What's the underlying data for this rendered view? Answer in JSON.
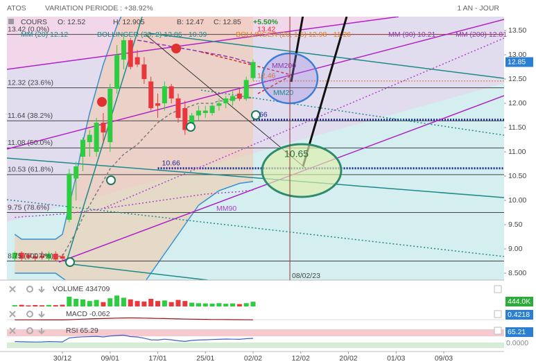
{
  "header": {
    "symbol": "ATOS",
    "variation": "VARIATION PERIODE : +38.92%",
    "period": "1 AN - JOUR"
  },
  "legend": {
    "name": "COURS",
    "open": "O: 12.52",
    "high": "H: 12.905",
    "low": "B: 12.47",
    "close": "C: 12.85",
    "change": "+5.50%"
  },
  "indicators": [
    "MM (20) 12.12",
    "BOLLINGER (20, 2) 13.86 - 10.39",
    "BOLLINGER (20, 1.5) 12.98 - 11.26",
    "MM (90) 10.21",
    "MM (200) 12.81"
  ],
  "annotations": [
    "MM200",
    "MM20",
    "MM90",
    "10.65"
  ],
  "chart_data": [
    {
      "type": "candlestick",
      "x": [
        1,
        2,
        3,
        4,
        5,
        6,
        7,
        8,
        9,
        10,
        11,
        12,
        13,
        14,
        15,
        16,
        17,
        18,
        19,
        20,
        21,
        22,
        23,
        24,
        25,
        26,
        27,
        28,
        29,
        30,
        31,
        32,
        33,
        34,
        35,
        36
      ],
      "open": [
        8.8,
        8.92,
        8.88,
        8.85,
        8.86,
        8.8,
        8.9,
        8.85,
        9.6,
        10.45,
        10.9,
        11.2,
        11.0,
        11.6,
        11.2,
        12.3,
        12.9,
        13.3,
        12.95,
        12.8,
        12.45,
        12.0,
        12.0,
        12.35,
        12.1,
        11.9,
        11.55,
        11.75,
        11.8,
        11.8,
        11.95,
        12.0,
        12.05,
        12.2,
        12.1,
        12.52
      ],
      "high": [
        8.95,
        8.95,
        8.92,
        8.9,
        8.95,
        8.95,
        8.95,
        8.9,
        10.65,
        10.8,
        11.3,
        11.45,
        11.7,
        11.8,
        12.4,
        13.2,
        13.4,
        13.35,
        13.1,
        12.95,
        12.55,
        12.2,
        12.45,
        12.4,
        12.2,
        12.05,
        11.8,
        11.95,
        11.95,
        12.0,
        12.1,
        12.15,
        12.25,
        12.3,
        12.55,
        12.905
      ],
      "low": [
        8.75,
        8.75,
        8.78,
        8.75,
        8.78,
        8.75,
        8.75,
        8.75,
        9.55,
        10.0,
        10.6,
        10.9,
        10.9,
        11.2,
        11.0,
        12.2,
        12.7,
        12.7,
        12.75,
        12.4,
        11.85,
        11.7,
        11.85,
        12.0,
        11.6,
        11.35,
        11.5,
        11.65,
        11.7,
        11.75,
        11.85,
        11.9,
        11.95,
        12.05,
        12.05,
        12.47
      ],
      "close": [
        8.92,
        8.8,
        8.82,
        8.8,
        8.82,
        8.9,
        8.78,
        8.8,
        10.55,
        10.7,
        11.25,
        11.35,
        11.6,
        11.4,
        12.3,
        13.0,
        13.3,
        12.75,
        12.8,
        12.5,
        11.9,
        11.95,
        12.35,
        12.1,
        11.7,
        11.45,
        11.75,
        11.85,
        11.85,
        11.95,
        12.0,
        12.1,
        12.15,
        12.1,
        12.48,
        12.85
      ],
      "up_color": "#2ecc40",
      "down_color": "#e8383d",
      "bollinger": {
        "color": "#3a8fd0",
        "fill": "#f2c9a8",
        "upper": [
          9.3,
          9.2,
          9.2,
          9.2,
          9.2,
          9.2,
          9.2,
          9.3,
          9.9,
          10.5,
          11.2,
          11.8,
          12.3,
          12.8,
          13.2,
          13.6,
          13.9,
          14.0,
          14.0,
          14.0,
          14.0,
          14.0,
          14.0,
          13.95,
          13.95,
          13.9,
          13.9,
          13.9,
          13.9,
          13.88,
          13.88,
          13.87,
          13.87,
          13.86,
          13.86,
          13.86
        ],
        "lower": [
          8.5,
          8.5,
          8.5,
          8.5,
          8.5,
          8.5,
          8.5,
          8.4,
          8.3,
          8.2,
          8.1,
          8.0,
          8.0,
          8.0,
          8.0,
          8.0,
          8.0,
          8.1,
          8.2,
          8.3,
          8.5,
          8.7,
          8.9,
          9.1,
          9.3,
          9.5,
          9.7,
          9.9,
          10.0,
          10.1,
          10.2,
          10.25,
          10.3,
          10.35,
          10.37,
          10.39
        ]
      },
      "overlays": [
        {
          "color": "#7d7d7d",
          "dash": "4 3",
          "values": [
            8.9,
            8.9,
            8.9,
            8.9,
            8.9,
            8.85,
            8.85,
            8.85,
            9.1,
            9.35,
            9.65,
            9.9,
            10.15,
            10.4,
            10.65,
            10.8,
            10.95,
            11.05,
            11.15,
            11.3,
            11.45,
            11.6,
            11.7,
            11.8,
            11.85,
            11.9,
            11.95,
            12.0,
            12.0,
            12.0,
            12.05,
            12.05,
            12.1,
            12.1,
            12.1,
            12.12
          ]
        },
        {
          "color": "#b040d0",
          "dash": "2 3",
          "values": [
            9.65,
            9.66,
            9.67,
            9.68,
            9.69,
            9.7,
            9.71,
            9.72,
            9.73,
            9.75,
            9.77,
            9.79,
            9.81,
            9.83,
            9.85,
            9.87,
            9.89,
            9.91,
            9.93,
            9.95,
            9.97,
            9.99,
            10.01,
            10.03,
            10.05,
            10.07,
            10.09,
            10.11,
            10.13,
            10.14,
            10.15,
            10.16,
            10.17,
            10.18,
            10.2,
            10.21
          ]
        },
        {
          "color": "#8a3ab0",
          "dash": "6 3",
          "values": [
            null,
            null,
            null,
            null,
            null,
            null,
            null,
            null,
            null,
            null,
            null,
            null,
            null,
            null,
            null,
            null,
            null,
            null,
            13.3,
            13.28,
            13.25,
            13.22,
            13.2,
            13.17,
            13.15,
            13.12,
            13.1,
            13.07,
            13.05,
            13.02,
            13.0,
            12.97,
            12.94,
            12.9,
            12.86,
            12.81
          ]
        }
      ],
      "ylim": [
        8.357,
        13.786
      ],
      "yticks": [
        {
          "value": 13.5,
          "label": "13.50"
        },
        {
          "value": 13,
          "label": "13.00"
        },
        {
          "value": 12.5,
          "label": "12.50"
        },
        {
          "value": 12,
          "label": "12.00"
        },
        {
          "value": 11.5,
          "label": "11.50"
        },
        {
          "value": 11,
          "label": "11.00"
        },
        {
          "value": 10.5,
          "label": "10.50"
        },
        {
          "value": 10,
          "label": "10.00"
        },
        {
          "value": 9.5,
          "label": "9.50"
        },
        {
          "value": 9,
          "label": "9.00"
        },
        {
          "value": 8.5,
          "label": "8.500"
        }
      ],
      "xlim": [
        -0.15,
        72.86
      ],
      "xticks": [
        {
          "value": 8,
          "label": "30/12"
        },
        {
          "value": 15,
          "label": "09/01"
        },
        {
          "value": 22,
          "label": "17/01"
        },
        {
          "value": 29,
          "label": "25/01"
        },
        {
          "value": 36,
          "label": "02/02"
        },
        {
          "value": 43,
          "label": "12/02"
        },
        {
          "value": 50,
          "label": "20/02"
        },
        {
          "value": 57,
          "label": "01/03"
        },
        {
          "value": 64,
          "label": "09/03"
        }
      ],
      "fibonacci": [
        {
          "value": 13.42,
          "label": "13.42 (0.0%)"
        },
        {
          "value": 12.32,
          "label": "12.32 (23.6%)"
        },
        {
          "value": 11.64,
          "label": "11.64 (38.2%)"
        },
        {
          "value": 11.08,
          "label": "11.08 (50.0%)"
        },
        {
          "value": 10.53,
          "label": "10.53 (61.8%)"
        },
        {
          "value": 9.75,
          "label": "9.75 (78.6%)"
        },
        {
          "value": 8.75,
          "label": "8.75 (100.0%)"
        }
      ],
      "levels": [
        {
          "value": 11.66,
          "label": ".66",
          "color": "#1a2a9a",
          "from": 36
        },
        {
          "value": 10.66,
          "label": "10.66",
          "color": "#1a2a9a",
          "from": 22
        },
        {
          "value": 12.46,
          "label": "12.46",
          "color": "#e07030",
          "from": 36
        },
        {
          "value": 13.42,
          "label": "13.42",
          "color": "#e03030",
          "from": 36
        }
      ],
      "marker": {
        "value": 41.4,
        "label": "08/02/23",
        "color": "#a03030"
      },
      "price_color": "#2a7fd4"
    },
    {
      "type": "bar",
      "title": "VOLUME 434709",
      "badge": "444.0K",
      "badge_color": "#2eaa3a",
      "x": [
        1,
        2,
        3,
        4,
        5,
        6,
        7,
        8,
        9,
        10,
        11,
        12,
        13,
        14,
        15,
        16,
        17,
        18,
        19,
        20,
        21,
        22,
        23,
        24,
        25,
        26,
        27,
        28,
        29,
        30,
        31,
        32,
        33,
        34,
        35,
        36
      ],
      "values": [
        120000,
        150000,
        100000,
        130000,
        110000,
        140000,
        120000,
        160000,
        900000,
        700000,
        650000,
        500000,
        600000,
        400000,
        750000,
        1000000,
        800000,
        650000,
        500000,
        450000,
        700000,
        500000,
        550000,
        400000,
        600000,
        500000,
        350000,
        300000,
        280000,
        260000,
        300000,
        250000,
        280000,
        220000,
        300000,
        434709
      ],
      "ylim": [
        0,
        1400000
      ]
    },
    {
      "type": "line",
      "title": "MACD -0.062",
      "badge": "0.4218",
      "badge_color": "#2a7fd4",
      "color": "#8b1a1a",
      "x": [
        1,
        2,
        3,
        4,
        5,
        6,
        7,
        8,
        9,
        10,
        11,
        12,
        13,
        14,
        15,
        16,
        17,
        18,
        19,
        20,
        21,
        22,
        23,
        24,
        25,
        26,
        27,
        28,
        29,
        30,
        31,
        32,
        33,
        34,
        35,
        36
      ],
      "values": [
        -0.06,
        -0.07,
        -0.08,
        -0.08,
        -0.09,
        -0.09,
        -0.1,
        -0.1,
        -0.02,
        0.08,
        0.18,
        0.26,
        0.33,
        0.38,
        0.45,
        0.52,
        0.58,
        0.6,
        0.58,
        0.54,
        0.48,
        0.42,
        0.38,
        0.32,
        0.26,
        0.2,
        0.16,
        0.12,
        0.09,
        0.06,
        0.04,
        0.02,
        0.0,
        -0.02,
        -0.04,
        -0.062
      ],
      "ylim": [
        -1.2,
        1.2
      ]
    },
    {
      "type": "line",
      "title": "RSI 65.29",
      "badge": "65.21",
      "badge_color": "#2a7fd4",
      "extra": "0.0000",
      "color": "#3a5fcd",
      "x": [
        1,
        2,
        3,
        4,
        5,
        6,
        7,
        8,
        9,
        10,
        11,
        12,
        13,
        14,
        15,
        16,
        17,
        18,
        19,
        20,
        21,
        22,
        23,
        24,
        25,
        26,
        27,
        28,
        29,
        30,
        31,
        32,
        33,
        34,
        35,
        36
      ],
      "values": [
        45,
        44,
        43,
        42,
        43,
        45,
        44,
        43,
        68,
        72,
        75,
        76,
        78,
        74,
        80,
        83,
        85,
        76,
        74,
        66,
        56,
        55,
        60,
        56,
        50,
        46,
        52,
        55,
        56,
        58,
        59,
        61,
        60,
        59,
        63,
        65.29
      ],
      "ylim": [
        0,
        100
      ]
    }
  ]
}
